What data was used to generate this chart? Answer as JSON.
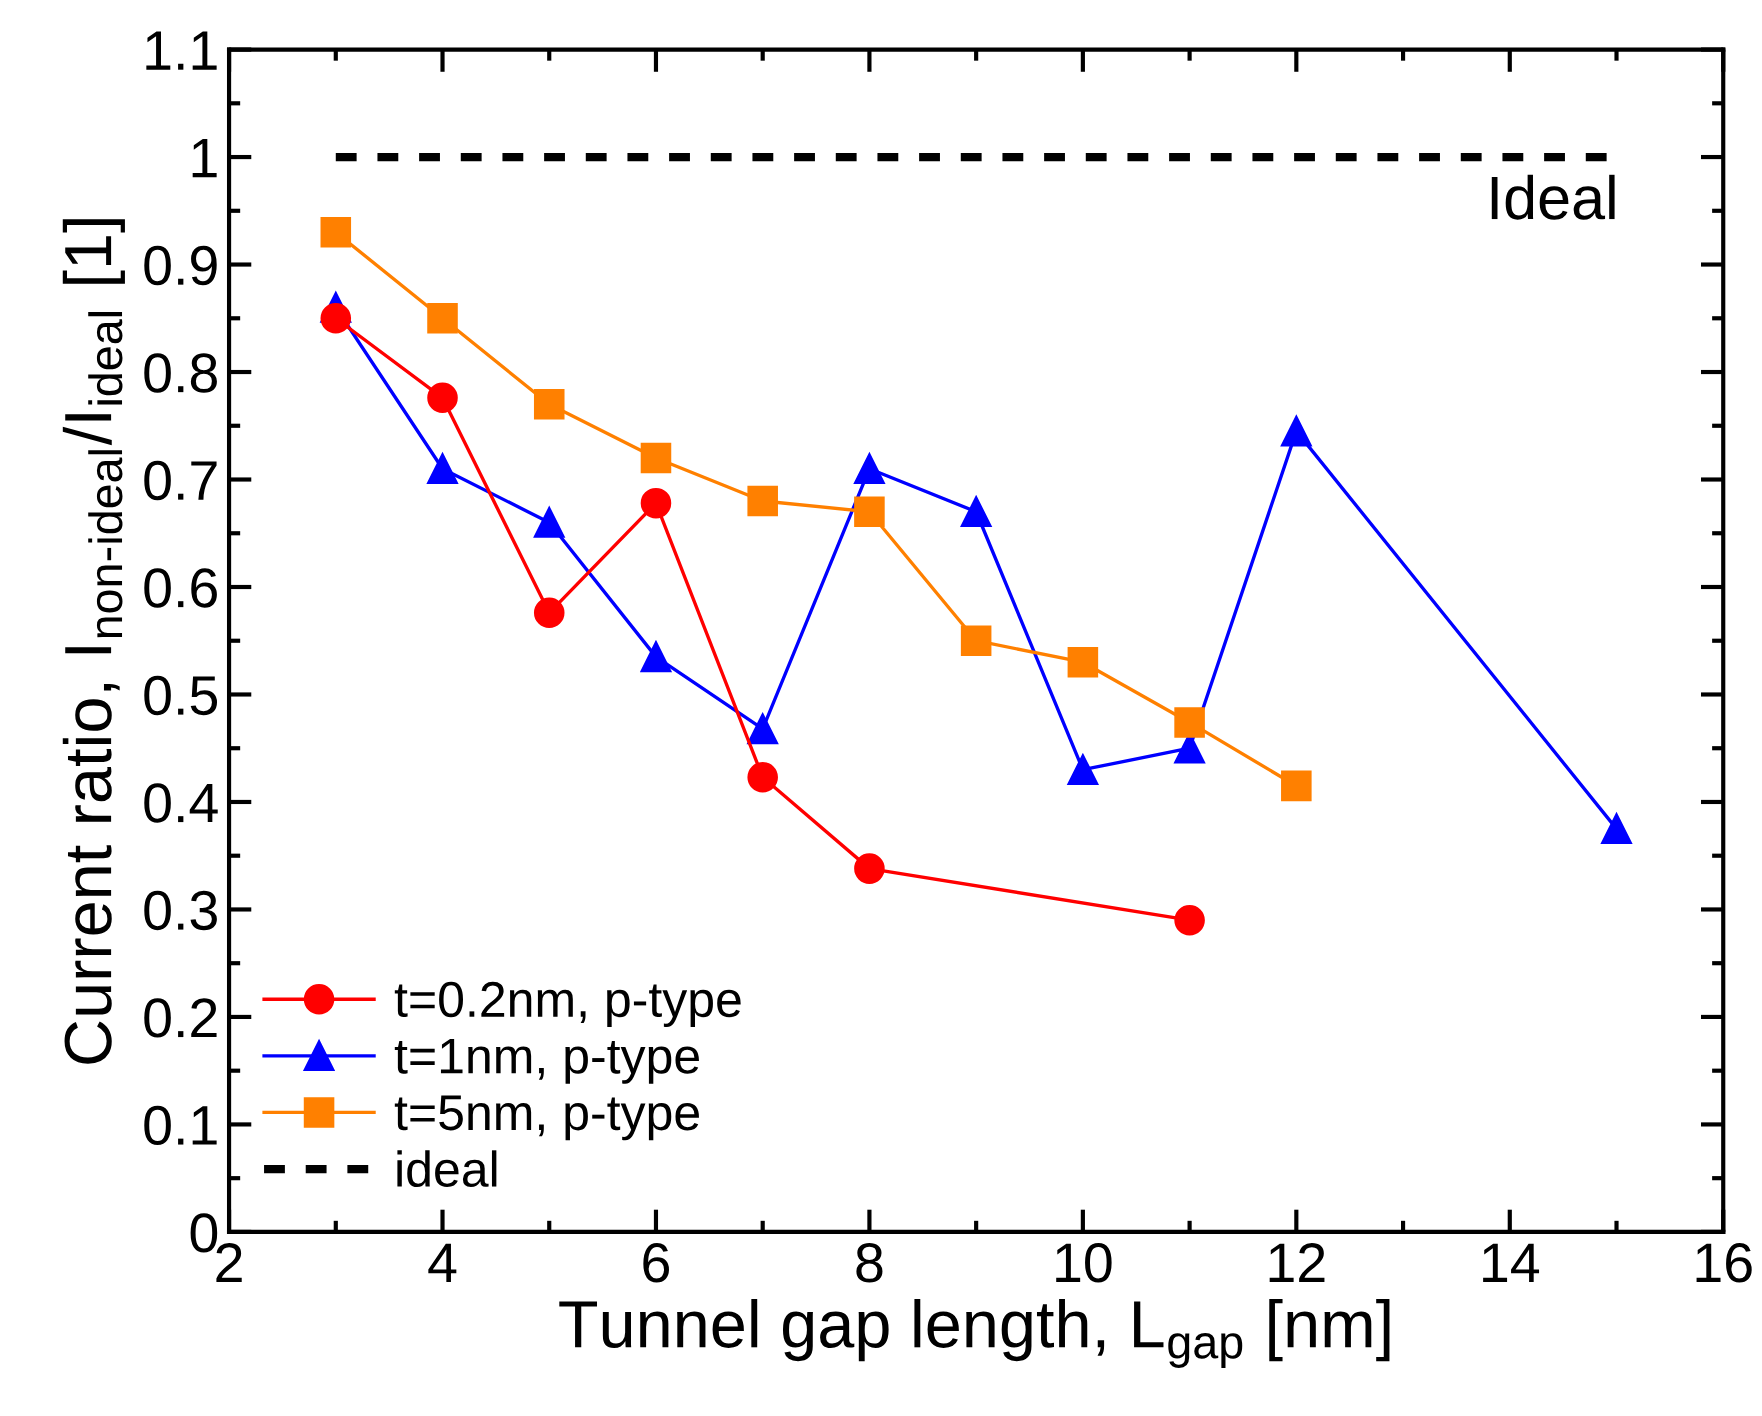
{
  "chart_data": {
    "type": "line",
    "xlabel": "Tunnel gap length, L$_{gap}$ [nm]",
    "ylabel": "Current ratio, I$_{non-ideal}$/I$_{ideal}$ [1]",
    "xlim": [
      2,
      16
    ],
    "xticks": [
      2,
      4,
      6,
      8,
      10,
      12,
      14,
      16
    ],
    "ylim": [
      0,
      1.1
    ],
    "yticks": [
      0,
      0.1,
      0.2,
      0.3,
      0.4,
      0.5,
      0.6,
      0.7,
      0.8,
      0.9,
      1,
      1.1
    ],
    "grid": false,
    "legend": "bottom left",
    "annotations": [
      "Ideal"
    ],
    "series": [
      {
        "name": "t=0.2nm, p-type",
        "color": "#ff0000",
        "marker": "circle",
        "line_style": "solid",
        "x": [
          3,
          4,
          5,
          6,
          7,
          8,
          11
        ],
        "values": [
          0.85,
          0.776,
          0.576,
          0.678,
          0.423,
          0.338,
          0.29
        ]
      },
      {
        "name": "t=1nm, p-type",
        "color": "#0000ff",
        "marker": "triangle",
        "line_style": "solid",
        "x": [
          3,
          4,
          5,
          6,
          7,
          8,
          9,
          10,
          11,
          12,
          15
        ],
        "values": [
          0.86,
          0.71,
          0.66,
          0.535,
          0.468,
          0.71,
          0.67,
          0.43,
          0.45,
          0.745,
          0.375
        ]
      },
      {
        "name": "t=5nm, p-type",
        "color": "#ff8000",
        "marker": "square",
        "line_style": "solid",
        "x": [
          3,
          4,
          5,
          6,
          7,
          8,
          9,
          10,
          11,
          12
        ],
        "values": [
          0.93,
          0.85,
          0.77,
          0.72,
          0.68,
          0.67,
          0.55,
          0.53,
          0.474,
          0.415
        ]
      },
      {
        "name": "ideal",
        "color": "#000000",
        "marker": "none",
        "line_style": "dashed",
        "x": [
          3,
          15
        ],
        "values": [
          1,
          1
        ]
      }
    ]
  }
}
